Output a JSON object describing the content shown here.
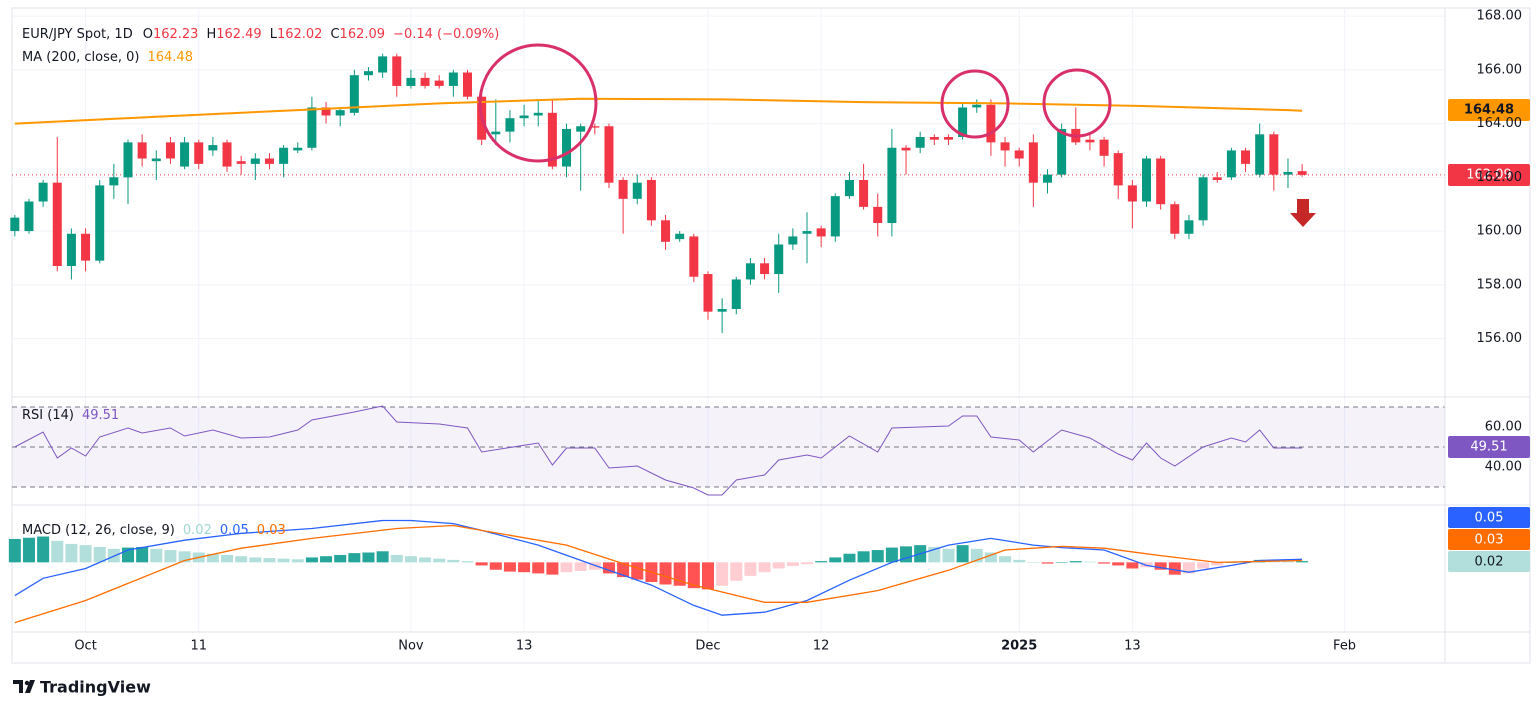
{
  "chart_data": [
    {
      "type": "candlestick",
      "title": "EUR/JPY Spot, 1D",
      "ohlc_letters": [
        "O",
        "H",
        "L",
        "C"
      ],
      "change": "−0.14 (−0.09%)",
      "up_color": "#089981",
      "down_color": "#f23645",
      "xlim": [
        -0.2,
        101.1
      ],
      "xticks": [
        {
          "value": 5,
          "label": "Oct"
        },
        {
          "value": 13,
          "label": "11"
        },
        {
          "value": 28,
          "label": "Nov"
        },
        {
          "value": 36,
          "label": "13"
        },
        {
          "value": 49,
          "label": "Dec"
        },
        {
          "value": 57,
          "label": "12"
        },
        {
          "value": 71,
          "label": "2025"
        },
        {
          "value": 79,
          "label": "13"
        },
        {
          "value": 94,
          "label": "Feb"
        }
      ],
      "ylim": [
        153.9,
        168.3
      ],
      "yticks": [
        {
          "value": 168,
          "label": "168.00"
        },
        {
          "value": 166,
          "label": "166.00"
        },
        {
          "value": 164,
          "label": "164.00"
        },
        {
          "value": 162,
          "label": "162.00"
        },
        {
          "value": 160,
          "label": "160.00"
        },
        {
          "value": 158,
          "label": "158.00"
        },
        {
          "value": 156,
          "label": "156.00"
        }
      ],
      "grid": true,
      "open": [
        160.0,
        160.0,
        161.1,
        161.8,
        158.7,
        159.9,
        158.9,
        161.7,
        162.0,
        163.3,
        162.6,
        163.3,
        162.4,
        163.3,
        163.0,
        163.3,
        162.6,
        162.5,
        162.7,
        162.5,
        163.0,
        163.1,
        164.6,
        164.3,
        164.4,
        165.8,
        165.9,
        166.5,
        165.4,
        165.7,
        165.6,
        165.4,
        165.9,
        165.0,
        163.6,
        163.7,
        164.2,
        164.3,
        164.4,
        162.4,
        163.7,
        163.9,
        163.9,
        161.9,
        161.2,
        161.9,
        160.4,
        159.7,
        159.8,
        158.4,
        157.0,
        157.1,
        158.2,
        158.8,
        158.4,
        159.5,
        159.9,
        160.1,
        159.8,
        161.3,
        161.9,
        160.9,
        160.3,
        163.1,
        163.1,
        163.5,
        163.5,
        163.5,
        164.6,
        164.7,
        163.3,
        163.0,
        163.3,
        161.8,
        162.1,
        163.8,
        163.4,
        163.4,
        162.9,
        161.7,
        161.1,
        162.7,
        161.0,
        159.9,
        160.4,
        162.0,
        162.0,
        163.0,
        162.1,
        163.6,
        162.1,
        162.23
      ],
      "high": [
        160.6,
        161.2,
        161.9,
        163.5,
        160.1,
        160.1,
        161.9,
        162.5,
        163.4,
        163.6,
        163.0,
        163.5,
        163.5,
        163.4,
        163.5,
        163.4,
        162.8,
        162.9,
        162.9,
        163.2,
        163.3,
        165.0,
        164.8,
        164.6,
        166.0,
        166.1,
        166.6,
        166.6,
        166.0,
        165.9,
        165.8,
        166.0,
        166.0,
        165.1,
        164.9,
        164.5,
        164.7,
        164.9,
        164.9,
        164.0,
        164.0,
        164.0,
        164.0,
        162.0,
        162.1,
        162.0,
        160.6,
        160.0,
        159.9,
        158.5,
        157.5,
        158.3,
        159.0,
        159.0,
        159.9,
        160.1,
        160.7,
        160.2,
        161.4,
        162.2,
        162.5,
        161.4,
        163.8,
        163.2,
        163.7,
        163.6,
        163.6,
        164.8,
        164.9,
        164.9,
        163.5,
        163.1,
        163.6,
        162.3,
        164.0,
        164.6,
        163.6,
        163.5,
        163.0,
        161.9,
        162.8,
        162.8,
        161.1,
        160.6,
        162.1,
        162.2,
        163.1,
        163.1,
        164.0,
        163.7,
        162.7,
        162.49
      ],
      "low": [
        159.8,
        159.9,
        160.9,
        158.5,
        158.2,
        158.5,
        158.8,
        161.2,
        161.0,
        162.4,
        161.9,
        162.5,
        162.3,
        162.3,
        162.8,
        162.2,
        162.1,
        161.9,
        162.3,
        162.0,
        162.9,
        163.0,
        164.0,
        163.9,
        164.3,
        165.6,
        165.7,
        165.0,
        165.3,
        165.3,
        165.3,
        165.0,
        164.9,
        163.2,
        163.2,
        163.3,
        163.9,
        163.9,
        162.3,
        162.0,
        161.5,
        163.6,
        161.6,
        159.9,
        161.0,
        160.2,
        159.3,
        159.6,
        158.1,
        156.7,
        156.2,
        156.9,
        158.0,
        158.2,
        157.7,
        159.3,
        158.8,
        159.4,
        159.6,
        161.2,
        160.8,
        159.8,
        159.8,
        162.1,
        162.9,
        163.2,
        163.2,
        163.4,
        164.4,
        162.8,
        162.4,
        162.4,
        160.9,
        161.4,
        162.0,
        163.2,
        163.0,
        162.4,
        161.2,
        160.1,
        160.9,
        160.8,
        159.7,
        159.7,
        160.2,
        161.8,
        161.9,
        162.2,
        162.0,
        161.5,
        161.6,
        162.02
      ],
      "close": [
        160.5,
        161.1,
        161.8,
        158.7,
        159.9,
        158.9,
        161.7,
        162.0,
        163.3,
        162.7,
        162.7,
        162.7,
        163.3,
        162.5,
        163.2,
        162.4,
        162.5,
        162.7,
        162.5,
        163.1,
        163.1,
        164.6,
        164.3,
        164.5,
        165.8,
        165.95,
        166.5,
        165.4,
        165.7,
        165.4,
        165.4,
        165.9,
        165.0,
        163.4,
        163.7,
        164.2,
        164.3,
        164.4,
        162.4,
        163.8,
        163.9,
        163.85,
        161.8,
        161.2,
        161.8,
        160.4,
        159.6,
        159.9,
        158.3,
        157.0,
        157.1,
        158.2,
        158.8,
        158.4,
        159.5,
        159.8,
        160.0,
        159.8,
        161.3,
        161.9,
        160.9,
        160.3,
        163.1,
        163.0,
        163.5,
        163.4,
        163.4,
        164.6,
        164.7,
        163.3,
        163.0,
        162.7,
        161.8,
        162.1,
        163.8,
        163.3,
        163.3,
        162.8,
        161.7,
        161.1,
        162.7,
        161.0,
        159.9,
        160.4,
        162.0,
        161.9,
        163.0,
        162.5,
        163.6,
        162.1,
        162.2,
        162.09
      ],
      "ma": {
        "name": "MA (200, close, 0)",
        "color": "#ff9800",
        "x": [
          0,
          10,
          20,
          30,
          40,
          50,
          60,
          70,
          80,
          90,
          91
        ],
        "values": [
          164.0,
          164.25,
          164.5,
          164.75,
          164.92,
          164.9,
          164.8,
          164.75,
          164.65,
          164.5,
          164.48
        ]
      }
    },
    {
      "type": "line",
      "title": "RSI (14)",
      "color": "#7e57c2",
      "ylim": [
        25,
        75
      ],
      "yticks": [
        {
          "value": 60,
          "label": "60.00"
        },
        {
          "value": 40,
          "label": "40.00"
        }
      ],
      "levels": [
        70,
        50,
        30
      ],
      "x": [
        0,
        2,
        3,
        4,
        5,
        6,
        8,
        9,
        11,
        12,
        14,
        16,
        18,
        20,
        21,
        24,
        26,
        27,
        30,
        32,
        33,
        37,
        38,
        39,
        41,
        42,
        44,
        46,
        48,
        49,
        50,
        51,
        53,
        54,
        56,
        57,
        59,
        61,
        62,
        66,
        67,
        68,
        69,
        71,
        72,
        74,
        76,
        78,
        79,
        80,
        81,
        82,
        84,
        86,
        87,
        88,
        89,
        91
      ],
      "values": [
        50,
        57.5,
        44.5,
        49.5,
        45.5,
        55,
        59.5,
        57,
        59.5,
        55.5,
        58.5,
        54.5,
        55,
        58.5,
        63.5,
        67.5,
        70.5,
        62.5,
        61.5,
        59.5,
        47.5,
        52,
        41,
        49.5,
        49.5,
        39.5,
        40.5,
        33.5,
        29.5,
        26,
        26,
        33.5,
        36,
        43.5,
        46,
        44.5,
        55.5,
        47.5,
        59.5,
        60.5,
        65.5,
        65.5,
        55,
        53.5,
        47.5,
        58.5,
        54.5,
        46.5,
        43.5,
        52,
        44.5,
        40.5,
        50,
        54.5,
        52.5,
        58.5,
        49.5,
        49.51
      ]
    },
    {
      "type": "macd",
      "title": "MACD (12, 26, close, 9)",
      "ylim": [
        -1.1,
        0.9
      ],
      "histogram": {
        "colors": [
          "#26a69a",
          "#b2dfdb",
          "#ffcdd2",
          "#ff5252"
        ],
        "values": [
          0.38,
          0.4,
          0.42,
          0.35,
          0.3,
          0.28,
          0.25,
          0.22,
          0.24,
          0.25,
          0.22,
          0.2,
          0.18,
          0.16,
          0.14,
          0.12,
          0.1,
          0.08,
          0.07,
          0.06,
          0.05,
          0.08,
          0.1,
          0.12,
          0.15,
          0.16,
          0.18,
          0.12,
          0.1,
          0.08,
          0.06,
          0.04,
          0.02,
          -0.05,
          -0.12,
          -0.15,
          -0.16,
          -0.18,
          -0.2,
          -0.16,
          -0.14,
          -0.12,
          -0.18,
          -0.24,
          -0.28,
          -0.32,
          -0.36,
          -0.38,
          -0.42,
          -0.44,
          -0.38,
          -0.3,
          -0.22,
          -0.16,
          -0.1,
          -0.06,
          -0.03,
          0.02,
          0.08,
          0.14,
          0.18,
          0.2,
          0.24,
          0.26,
          0.28,
          0.25,
          0.22,
          0.28,
          0.22,
          0.16,
          0.1,
          0.04,
          0.0,
          -0.02,
          0.0,
          0.02,
          0.01,
          -0.02,
          -0.05,
          -0.1,
          -0.08,
          -0.12,
          -0.2,
          -0.18,
          -0.1,
          -0.05,
          0.0,
          0.02,
          0.04,
          0.03,
          0.02,
          0.02
        ]
      },
      "macd": {
        "color": "#2962ff",
        "x": [
          0,
          2,
          5,
          8,
          12,
          16,
          21,
          26,
          28,
          31,
          33,
          37,
          41,
          45,
          48,
          50,
          53,
          56,
          59,
          62,
          66,
          69,
          72,
          74,
          77,
          80,
          83,
          86,
          88,
          91
        ],
        "values": [
          -0.54,
          -0.26,
          -0.1,
          0.2,
          0.36,
          0.47,
          0.55,
          0.68,
          0.68,
          0.63,
          0.52,
          0.28,
          -0.05,
          -0.37,
          -0.7,
          -0.86,
          -0.81,
          -0.62,
          -0.29,
          0,
          0.28,
          0.39,
          0.28,
          0.24,
          0.2,
          -0.05,
          -0.16,
          -0.05,
          0.03,
          0.05
        ]
      },
      "signal": {
        "color": "#ff6d00",
        "x": [
          0,
          5,
          12,
          16,
          21,
          27,
          31,
          35,
          39,
          43,
          48,
          53,
          56,
          61,
          66,
          70,
          74,
          77,
          81,
          85,
          91
        ],
        "values": [
          -0.98,
          -0.62,
          0.03,
          0.23,
          0.39,
          0.55,
          0.6,
          0.44,
          0.28,
          -0.02,
          -0.37,
          -0.65,
          -0.65,
          -0.46,
          -0.13,
          0.2,
          0.26,
          0.23,
          0.11,
          0,
          0.03
        ]
      }
    }
  ],
  "footer": {
    "brand": "TradingView"
  }
}
